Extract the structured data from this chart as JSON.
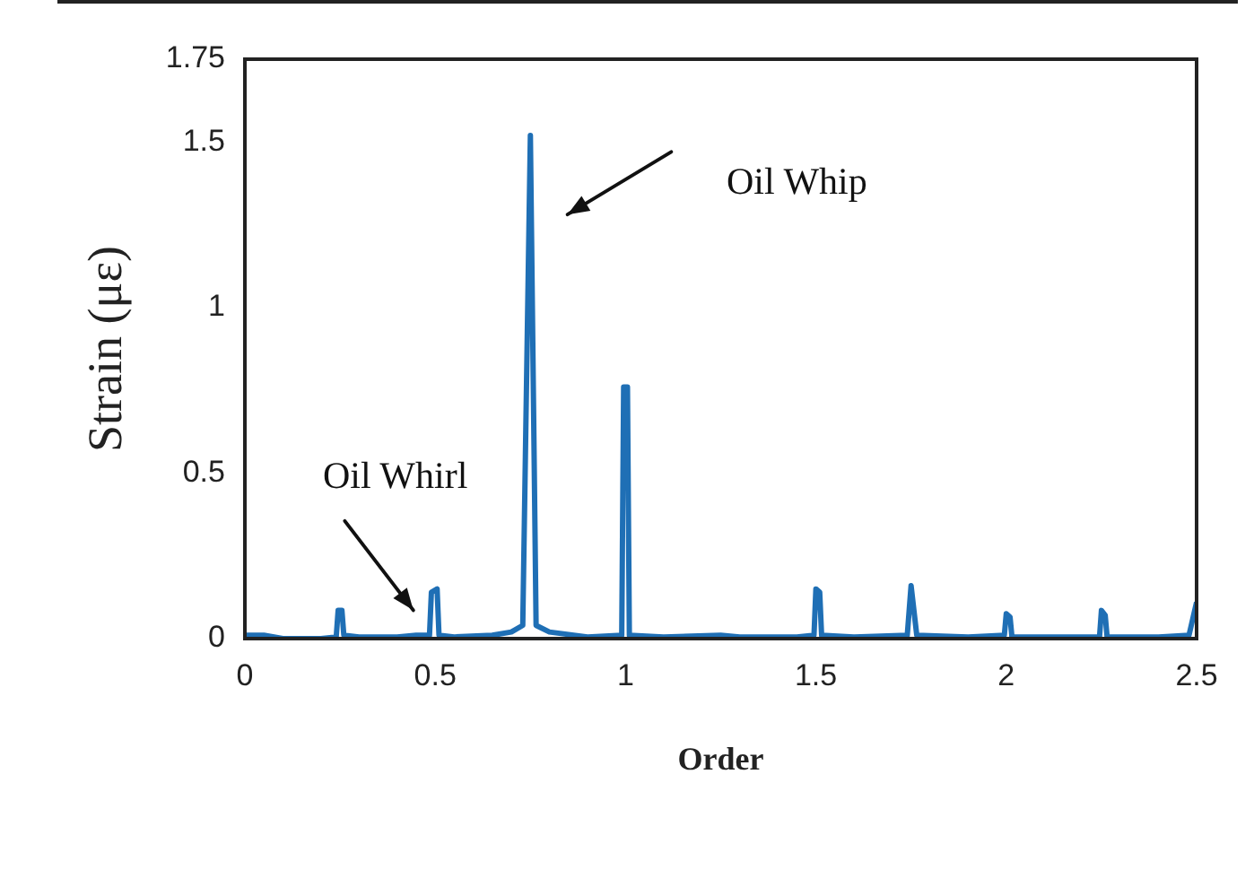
{
  "chart_data": {
    "type": "line",
    "xlabel": "Order",
    "ylabel": "Strain (με)",
    "x": [
      0,
      0.05,
      0.1,
      0.2,
      0.24,
      0.245,
      0.255,
      0.26,
      0.3,
      0.4,
      0.45,
      0.485,
      0.49,
      0.505,
      0.51,
      0.55,
      0.65,
      0.7,
      0.73,
      0.75,
      0.765,
      0.8,
      0.9,
      0.99,
      0.995,
      1.005,
      1.01,
      1.1,
      1.25,
      1.3,
      1.45,
      1.495,
      1.5,
      1.51,
      1.515,
      1.6,
      1.74,
      1.75,
      1.765,
      1.9,
      1.995,
      2.0,
      2.01,
      2.015,
      2.2,
      2.245,
      2.25,
      2.26,
      2.265,
      2.4,
      2.48,
      2.5
    ],
    "series": [
      {
        "color": "#1f6fb5",
        "values": [
          0.01,
          0.01,
          0,
          0,
          0.005,
          0.085,
          0.085,
          0.01,
          0.005,
          0.005,
          0.01,
          0.01,
          0.14,
          0.15,
          0.01,
          0.005,
          0.01,
          0.02,
          0.04,
          1.52,
          0.04,
          0.02,
          0.005,
          0.01,
          0.76,
          0.76,
          0.01,
          0.005,
          0.01,
          0.005,
          0.005,
          0.01,
          0.15,
          0.14,
          0.01,
          0.005,
          0.01,
          0.16,
          0.01,
          0.005,
          0.01,
          0.075,
          0.065,
          0.005,
          0.005,
          0.005,
          0.085,
          0.07,
          0.005,
          0.005,
          0.01,
          0.11
        ]
      }
    ],
    "xlim": [
      0,
      2.5
    ],
    "xticks": [
      0,
      0.5,
      1,
      1.5,
      2,
      2.5
    ],
    "ylim": [
      0,
      1.75
    ],
    "yticks": [
      0,
      0.5,
      1,
      1.5,
      1.75
    ],
    "grid": false,
    "legend": false,
    "marker": "none",
    "line_style": "solid",
    "annotations": [
      "Oil Whip",
      "Oil Whirl"
    ]
  }
}
